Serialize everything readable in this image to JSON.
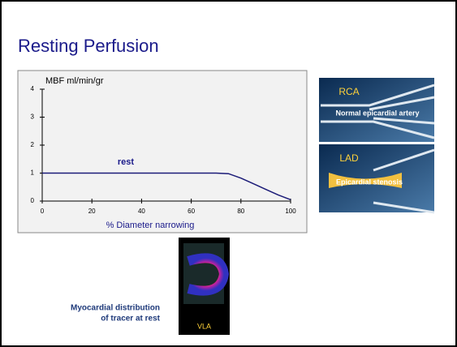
{
  "slide": {
    "title": "Resting Perfusion",
    "panels": [
      {
        "label": "RCA",
        "caption": "Normal epicardial artery"
      },
      {
        "label": "LAD",
        "caption": "Epicardial stenosis"
      }
    ],
    "scan_label": "VLA",
    "scan_caption": [
      "Myocardial distribution",
      "of tracer at rest"
    ]
  },
  "chart_data": {
    "type": "line",
    "y_label": "MBF ml/min/gr",
    "x_label": "% Diameter narrowing",
    "annotation": "rest",
    "x": [
      0,
      20,
      40,
      60,
      70,
      75,
      80,
      85,
      90,
      95,
      100
    ],
    "series": [
      {
        "name": "rest",
        "color": "#1c1c78",
        "values": [
          1,
          1,
          1,
          1,
          1,
          0.98,
          0.82,
          0.62,
          0.42,
          0.22,
          0.05
        ]
      }
    ],
    "xlim": [
      0,
      100
    ],
    "xticks": [
      0,
      20,
      40,
      60,
      80,
      100
    ],
    "ylim": [
      0,
      4
    ],
    "yticks": [
      0,
      1,
      2,
      3,
      4
    ]
  }
}
